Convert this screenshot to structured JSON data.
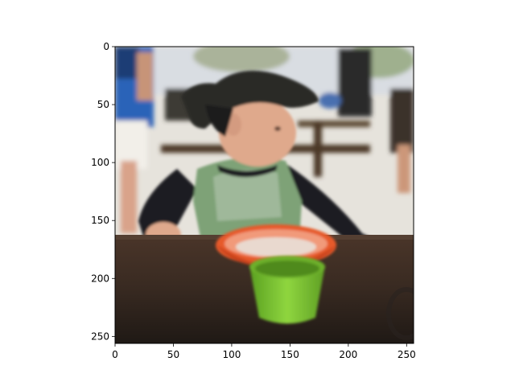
{
  "chart_data": {
    "type": "image",
    "xlim": [
      0,
      256
    ],
    "ylim": [
      256,
      0
    ],
    "x_ticks": [
      {
        "value": 0,
        "label": "0"
      },
      {
        "value": 50,
        "label": "50"
      },
      {
        "value": 100,
        "label": "100"
      },
      {
        "value": 150,
        "label": "150"
      },
      {
        "value": 200,
        "label": "200"
      },
      {
        "value": 250,
        "label": "250"
      }
    ],
    "y_ticks": [
      {
        "value": 0,
        "label": "0"
      },
      {
        "value": 50,
        "label": "50"
      },
      {
        "value": 100,
        "label": "100"
      },
      {
        "value": 150,
        "label": "150"
      },
      {
        "value": 200,
        "label": "200"
      },
      {
        "value": 250,
        "label": "250"
      }
    ],
    "title": "",
    "xlabel": "",
    "ylabel": ""
  },
  "colors": {
    "background": "#ffffff",
    "axes_frame": "#000000",
    "sky": "#dfe3e8",
    "ground": "#e6e3dc",
    "table": "#3a2b22",
    "hat": "#2a2a28",
    "shirt_body": "#7ea277",
    "sleeves": "#1e1f22",
    "skin": "#dfa98c",
    "orange_bowl": "#e65a2a",
    "green_cup": "#79c932",
    "bystander_blue": "#2c63b8"
  }
}
